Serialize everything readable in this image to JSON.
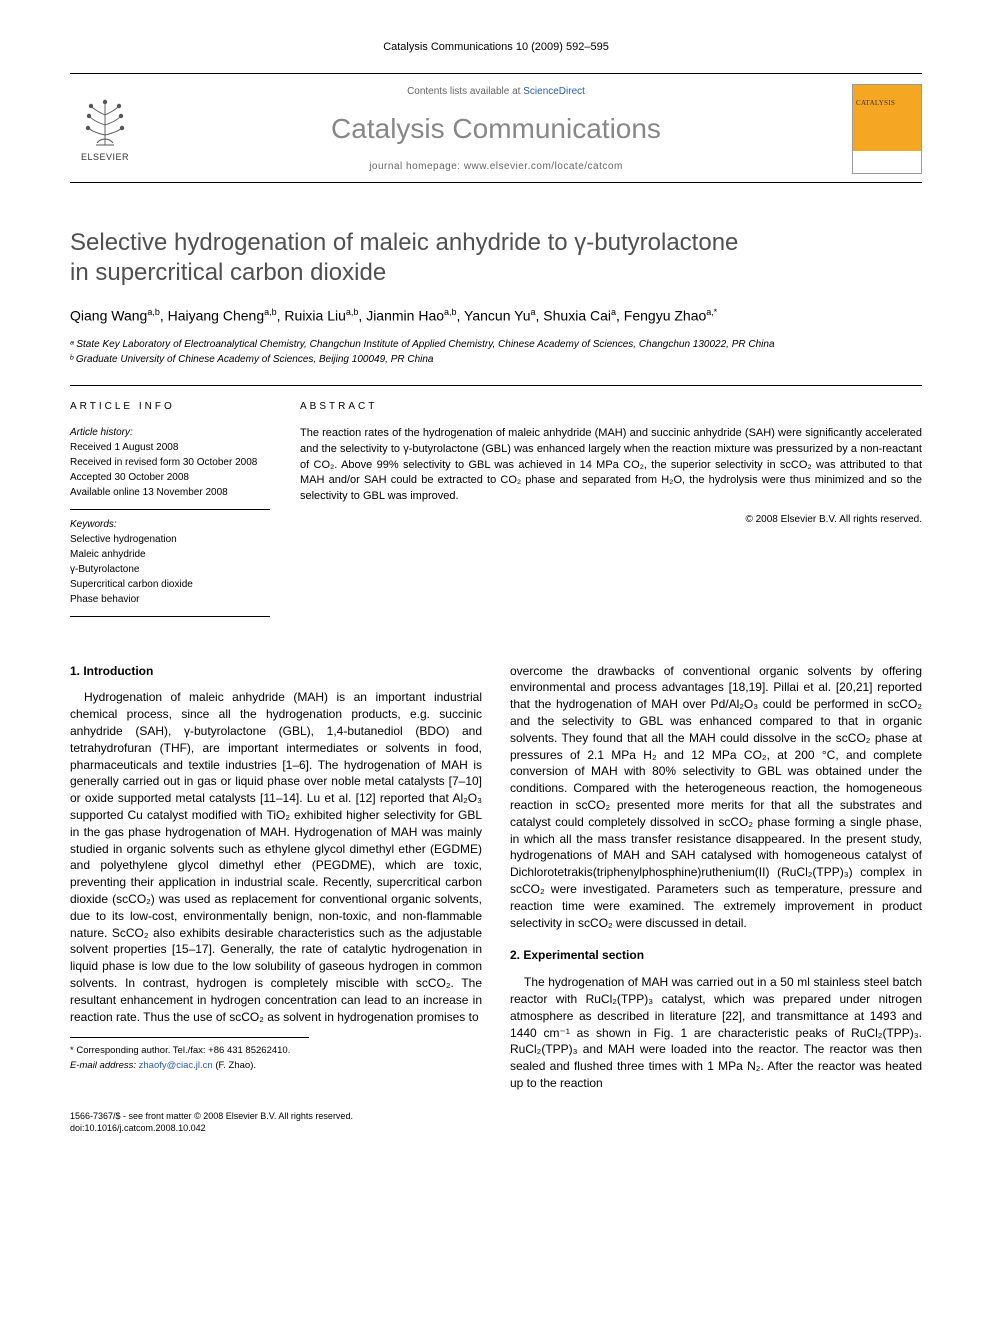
{
  "colors": {
    "text": "#000000",
    "muted": "#878787",
    "link": "#2a5db0",
    "cover_bg": "#f5a623",
    "border": "#000000",
    "background": "#ffffff",
    "subtitle_gray": "#666666"
  },
  "fonts": {
    "body_family": "Arial, sans-serif",
    "title_size_pt": 24,
    "journal_size_pt": 28,
    "body_size_pt": 12,
    "abstract_size_pt": 11,
    "info_size_pt": 10
  },
  "running_header": "Catalysis Communications 10 (2009) 592–595",
  "banner": {
    "publisher": "ELSEVIER",
    "contents_prefix": "Contents lists available at ",
    "contents_link": "ScienceDirect",
    "journal": "Catalysis Communications",
    "homepage_prefix": "journal homepage: ",
    "homepage_url": "www.elsevier.com/locate/catcom",
    "cover_small_title": "CATALYSIS"
  },
  "title_line1": "Selective hydrogenation of maleic anhydride to γ-butyrolactone",
  "title_line2": "in supercritical carbon dioxide",
  "authors_html": "Qiang Wang<sup>a,b</sup>, Haiyang Cheng<sup>a,b</sup>, Ruixia Liu<sup>a,b</sup>, Jianmin Hao<sup>a,b</sup>, Yancun Yu<sup>a</sup>, Shuxia Cai<sup>a</sup>, Fengyu Zhao<sup>a,*</sup>",
  "affiliations": [
    "ᵃ State Key Laboratory of Electroanalytical Chemistry, Changchun Institute of Applied Chemistry, Chinese Academy of Sciences, Changchun 130022, PR China",
    "ᵇ Graduate University of Chinese Academy of Sciences, Beijing 100049, PR China"
  ],
  "article_info_label": "ARTICLE INFO",
  "abstract_label": "ABSTRACT",
  "history": {
    "heading": "Article history:",
    "lines": [
      "Received 1 August 2008",
      "Received in revised form 30 October 2008",
      "Accepted 30 October 2008",
      "Available online 13 November 2008"
    ]
  },
  "keywords": {
    "heading": "Keywords:",
    "items": [
      "Selective hydrogenation",
      "Maleic anhydride",
      "γ-Butyrolactone",
      "Supercritical carbon dioxide",
      "Phase behavior"
    ]
  },
  "abstract_text": "The reaction rates of the hydrogenation of maleic anhydride (MAH) and succinic anhydride (SAH) were significantly accelerated and the selectivity to γ-butyrolactone (GBL) was enhanced largely when the reaction mixture was pressurized by a non-reactant of CO₂. Above 99% selectivity to GBL was achieved in 14 MPa CO₂, the superior selectivity in scCO₂ was attributed to that MAH and/or SAH could be extracted to CO₂ phase and separated from H₂O, the hydrolysis were thus minimized and so the selectivity to GBL was improved.",
  "copyright": "© 2008 Elsevier B.V. All rights reserved.",
  "sections": {
    "s1": {
      "heading": "1. Introduction",
      "col1": "Hydrogenation of maleic anhydride (MAH) is an important industrial chemical process, since all the hydrogenation products, e.g. succinic anhydride (SAH), γ-butyrolactone (GBL), 1,4-butanediol (BDO) and tetrahydrofuran (THF), are important intermediates or solvents in food, pharmaceuticals and textile industries [1–6]. The hydrogenation of MAH is generally carried out in gas or liquid phase over noble metal catalysts [7–10] or oxide supported metal catalysts [11–14]. Lu et al. [12] reported that Al₂O₃ supported Cu catalyst modified with TiO₂ exhibited higher selectivity for GBL in the gas phase hydrogenation of MAH. Hydrogenation of MAH was mainly studied in organic solvents such as ethylene glycol dimethyl ether (EGDME) and polyethylene glycol dimethyl ether (PEGDME), which are toxic, preventing their application in industrial scale. Recently, supercritical carbon dioxide (scCO₂) was used as replacement for conventional organic solvents, due to its low-cost, environmentally benign, non-toxic, and non-flammable nature. ScCO₂ also exhibits desirable characteristics such as the adjustable solvent properties [15–17]. Generally, the rate of catalytic hydrogenation in liquid phase is low due to the low solubility of gaseous hydrogen in common solvents. In contrast, hydrogen is completely miscible with scCO₂. The resultant enhancement in hydrogen concentration can lead to an increase in reaction rate. Thus the use of scCO₂ as solvent in hydrogenation promises to",
      "col2": "overcome the drawbacks of conventional organic solvents by offering environmental and process advantages [18,19]. Pillai et al. [20,21] reported that the hydrogenation of MAH over Pd/Al₂O₃ could be performed in scCO₂ and the selectivity to GBL was enhanced compared to that in organic solvents. They found that all the MAH could dissolve in the scCO₂ phase at pressures of 2.1 MPa H₂ and 12 MPa CO₂, at 200 °C, and complete conversion of MAH with 80% selectivity to GBL was obtained under the conditions. Compared with the heterogeneous reaction, the homogeneous reaction in scCO₂ presented more merits for that all the substrates and catalyst could completely dissolved in scCO₂ phase forming a single phase, in which all the mass transfer resistance disappeared. In the present study, hydrogenations of MAH and SAH catalysed with homogeneous catalyst of Dichlorotetrakis(triphenylphosphine)ruthenium(II) (RuCl₂(TPP)₃) complex in scCO₂ were investigated. Parameters such as temperature, pressure and reaction time were examined. The extremely improvement in product selectivity in scCO₂ were discussed in detail."
    },
    "s2": {
      "heading": "2. Experimental section",
      "text": "The hydrogenation of MAH was carried out in a 50 ml stainless steel batch reactor with RuCl₂(TPP)₃ catalyst, which was prepared under nitrogen atmosphere as described in literature [22], and transmittance at 1493 and 1440 cm⁻¹ as shown in Fig. 1 are characteristic peaks of RuCl₂(TPP)₃. RuCl₂(TPP)₃ and MAH were loaded into the reactor. The reactor was then sealed and flushed three times with 1 MPa N₂. After the reactor was heated up to the reaction"
    }
  },
  "footnote": {
    "corr": "* Corresponding author. Tel./fax: +86 431 85262410.",
    "email_label": "E-mail address:",
    "email": "zhaofy@ciac.jl.cn",
    "email_name": "(F. Zhao)."
  },
  "footer": {
    "line1": "1566-7367/$ - see front matter © 2008 Elsevier B.V. All rights reserved.",
    "line2": "doi:10.1016/j.catcom.2008.10.042"
  }
}
